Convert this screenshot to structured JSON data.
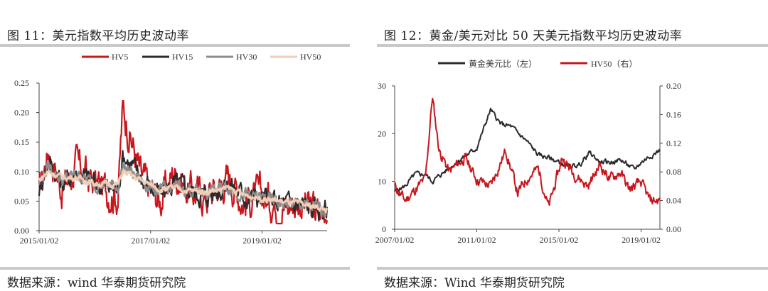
{
  "left": {
    "title": "图 11：美元指数平均历史波动率",
    "source": "数据来源：wind  华泰期货研究院"
  },
  "right": {
    "title": "图 12：黄金/美元对比 50 天美元指数平均历史波动率",
    "source": "数据来源：Wind  华泰期货研究院"
  },
  "chart_data": [
    {
      "type": "line",
      "title": "图 11：美元指数平均历史波动率",
      "x_ticks": [
        "2015/01/02",
        "2017/01/02",
        "2019/01/02"
      ],
      "ylim": [
        0,
        0.25
      ],
      "y_ticks": [
        "0.00",
        "0.05",
        "0.10",
        "0.15",
        "0.20",
        "0.25"
      ],
      "legend_position": "top",
      "grid": false,
      "series": [
        {
          "name": "HV5",
          "color": "#c8161d",
          "x": [
            "2015/01",
            "2015/03",
            "2015/06",
            "2015/09",
            "2016/01",
            "2016/06",
            "2016/07",
            "2016/11",
            "2017/03",
            "2017/06",
            "2017/09",
            "2018/01",
            "2018/06",
            "2018/09",
            "2019/01",
            "2019/06",
            "2019/09",
            "2020/01",
            "2020/03"
          ],
          "values": [
            0.06,
            0.14,
            0.07,
            0.11,
            0.08,
            0.06,
            0.21,
            0.09,
            0.05,
            0.1,
            0.07,
            0.06,
            0.09,
            0.05,
            0.06,
            0.04,
            0.05,
            0.03,
            0.04
          ]
        },
        {
          "name": "HV15",
          "color": "#2b2b2b",
          "x": [
            "2015/01",
            "2015/03",
            "2015/06",
            "2015/09",
            "2016/01",
            "2016/06",
            "2016/07",
            "2016/11",
            "2017/03",
            "2017/06",
            "2017/09",
            "2018/01",
            "2018/06",
            "2018/09",
            "2019/01",
            "2019/06",
            "2019/09",
            "2020/01",
            "2020/03"
          ],
          "values": [
            0.07,
            0.12,
            0.08,
            0.1,
            0.08,
            0.07,
            0.13,
            0.09,
            0.06,
            0.08,
            0.07,
            0.06,
            0.08,
            0.06,
            0.055,
            0.045,
            0.045,
            0.035,
            0.035
          ]
        },
        {
          "name": "HV30",
          "color": "#8c8c8c",
          "x": [
            "2015/01",
            "2015/03",
            "2015/06",
            "2015/09",
            "2016/01",
            "2016/06",
            "2016/07",
            "2016/11",
            "2017/03",
            "2017/06",
            "2017/09",
            "2018/01",
            "2018/06",
            "2018/09",
            "2019/01",
            "2019/06",
            "2019/09",
            "2020/01",
            "2020/03"
          ],
          "values": [
            0.08,
            0.11,
            0.085,
            0.095,
            0.08,
            0.075,
            0.11,
            0.085,
            0.065,
            0.075,
            0.07,
            0.065,
            0.075,
            0.06,
            0.055,
            0.045,
            0.045,
            0.038,
            0.035
          ]
        },
        {
          "name": "HV50",
          "color": "#f3cdb6",
          "x": [
            "2015/01",
            "2015/03",
            "2015/06",
            "2015/09",
            "2016/01",
            "2016/06",
            "2016/07",
            "2016/11",
            "2017/03",
            "2017/06",
            "2017/09",
            "2018/01",
            "2018/06",
            "2018/09",
            "2019/01",
            "2019/06",
            "2019/09",
            "2020/01",
            "2020/03"
          ],
          "values": [
            0.085,
            0.1,
            0.09,
            0.09,
            0.08,
            0.078,
            0.1,
            0.085,
            0.07,
            0.072,
            0.068,
            0.066,
            0.072,
            0.06,
            0.055,
            0.048,
            0.045,
            0.04,
            0.035
          ]
        }
      ]
    },
    {
      "type": "line",
      "title": "图 12：黄金/美元对比 50 天美元指数平均历史波动率",
      "x_ticks": [
        "2007/01/02",
        "2011/01/02",
        "2015/01/02",
        "2019/01/02"
      ],
      "ylim_left": [
        0,
        30
      ],
      "ylim_right": [
        0,
        0.2
      ],
      "y_ticks_left": [
        "0",
        "10",
        "20",
        "30"
      ],
      "y_ticks_right": [
        "0.00",
        "0.04",
        "0.08",
        "0.12",
        "0.16",
        "0.20"
      ],
      "legend_position": "top",
      "grid": false,
      "series": [
        {
          "name": "黄金美元比（左）",
          "axis": "left",
          "color": "#2b2b2b",
          "x": [
            "2007/01",
            "2007/07",
            "2008/01",
            "2008/07",
            "2008/11",
            "2009/06",
            "2010/01",
            "2010/07",
            "2011/01",
            "2011/09",
            "2012/03",
            "2012/09",
            "2013/06",
            "2014/01",
            "2014/07",
            "2015/01",
            "2015/07",
            "2016/01",
            "2016/07",
            "2017/01",
            "2017/07",
            "2018/01",
            "2018/09",
            "2019/01",
            "2019/07",
            "2019/12"
          ],
          "values": [
            8.0,
            9.0,
            11.5,
            11.5,
            10.0,
            12.0,
            14.0,
            15.5,
            17.0,
            25.0,
            22.0,
            21.5,
            18.5,
            15.5,
            15.0,
            14.0,
            13.0,
            13.5,
            16.0,
            14.0,
            14.0,
            14.5,
            12.5,
            14.0,
            15.5,
            16.5
          ]
        },
        {
          "name": "HV50（右）",
          "axis": "right",
          "color": "#c8161d",
          "x": [
            "2007/01",
            "2007/07",
            "2008/01",
            "2008/07",
            "2008/11",
            "2009/03",
            "2009/09",
            "2010/06",
            "2011/01",
            "2011/09",
            "2012/06",
            "2013/01",
            "2013/06",
            "2014/01",
            "2014/07",
            "2015/03",
            "2015/09",
            "2016/06",
            "2017/01",
            "2017/07",
            "2018/01",
            "2018/06",
            "2019/01",
            "2019/06",
            "2019/12"
          ],
          "values": [
            0.06,
            0.04,
            0.055,
            0.07,
            0.185,
            0.11,
            0.08,
            0.1,
            0.07,
            0.06,
            0.11,
            0.05,
            0.07,
            0.085,
            0.03,
            0.1,
            0.08,
            0.06,
            0.09,
            0.07,
            0.08,
            0.055,
            0.065,
            0.04,
            0.04
          ]
        }
      ]
    }
  ]
}
